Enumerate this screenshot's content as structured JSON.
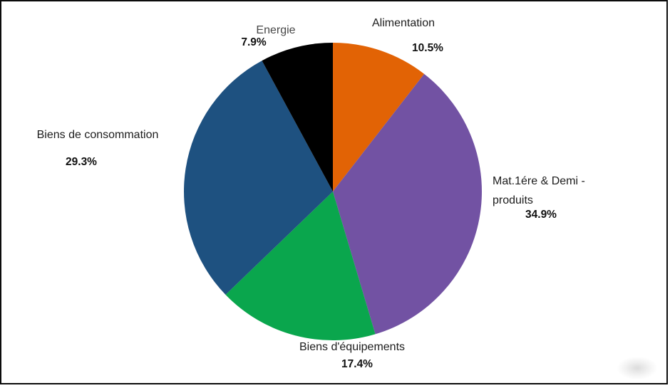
{
  "chart_data": {
    "type": "pie",
    "title": "",
    "unit": "%",
    "direction": "clockwise",
    "start_angle_deg": 0,
    "legend": "none",
    "slices": [
      {
        "label": "Alimentation",
        "value": 10.5,
        "pct_label": "10.5%",
        "color": "#E26305"
      },
      {
        "label": "Mat.1ére & Demi - produits",
        "value": 34.9,
        "pct_label": "34.9%",
        "color": "#7252A3"
      },
      {
        "label": "Biens d'équipements",
        "value": 17.4,
        "pct_label": "17.4%",
        "color": "#0AA64D"
      },
      {
        "label": "Biens de consommation",
        "value": 29.3,
        "pct_label": "29.3%",
        "color": "#1E5180"
      },
      {
        "label": "Energie",
        "value": 7.9,
        "pct_label": "7.9%",
        "color": "#000000"
      }
    ]
  }
}
